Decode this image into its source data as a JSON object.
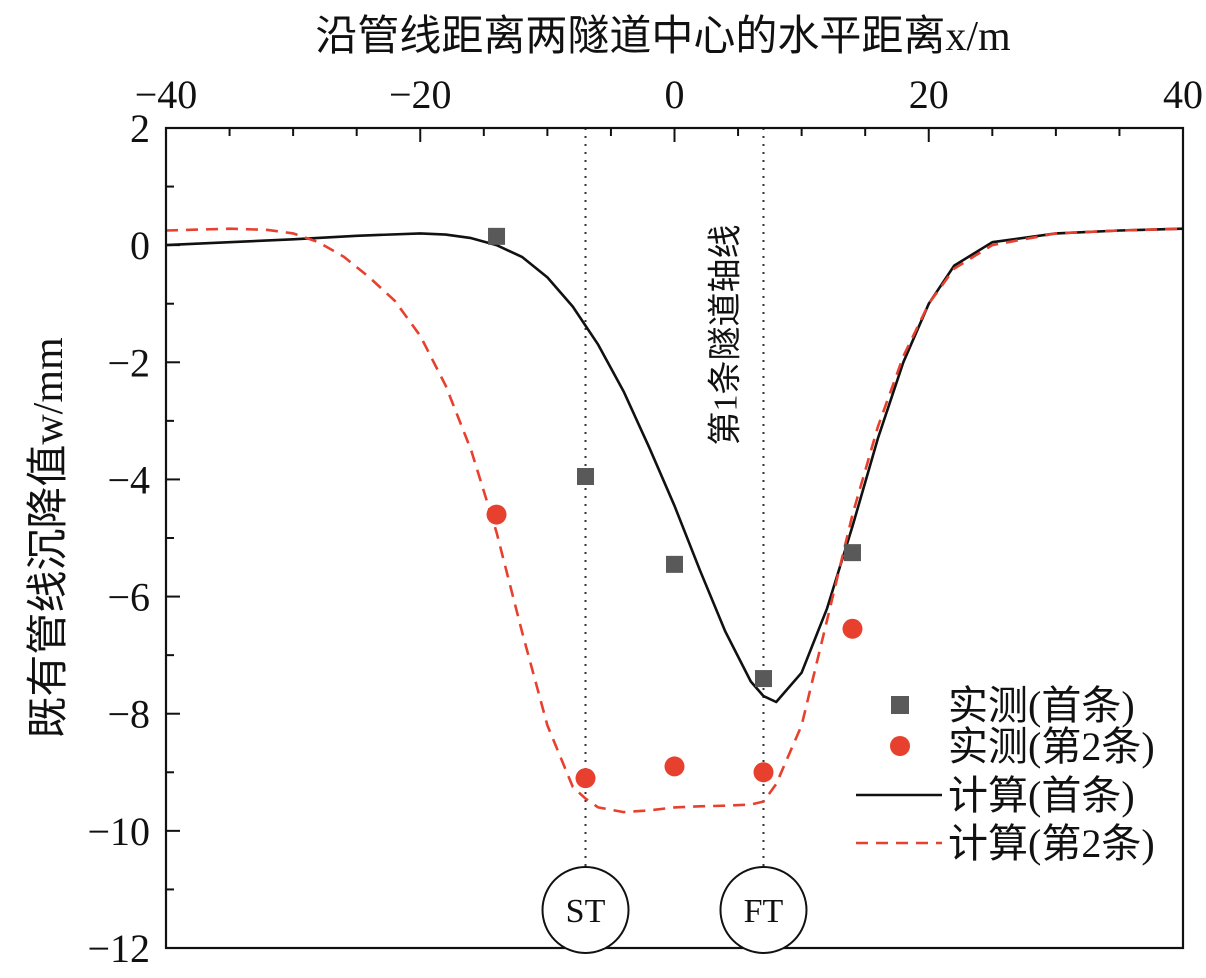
{
  "chart_data": {
    "type": "line",
    "xlabel": "沿管线距离两隧道中心的水平距离x/m",
    "ylabel": "既有管线沉降值w/mm",
    "xlim": [
      -40,
      40
    ],
    "ylim": [
      -12,
      2
    ],
    "x_ticks": [
      -40,
      -20,
      0,
      20,
      40
    ],
    "x_tick_labels": [
      "−40",
      "−20",
      "0",
      "20",
      "40"
    ],
    "y_ticks": [
      2,
      0,
      -2,
      -4,
      -6,
      -8,
      -10,
      -12
    ],
    "y_tick_labels": [
      "2",
      "0",
      "−2",
      "−4",
      "−6",
      "−8",
      "−10",
      "−12"
    ],
    "x_axis_position": "top",
    "grid": false,
    "legend_position": "bottom-right",
    "annotations": {
      "axis_line_label": "第1条隧道轴线",
      "st_label": "ST",
      "ft_label": "FT",
      "st_x": -7,
      "ft_x": 7
    },
    "series": [
      {
        "name": "实测(首条)",
        "kind": "scatter",
        "marker": "square",
        "color": "#595959",
        "x": [
          -14,
          -7,
          0,
          7,
          14
        ],
        "y": [
          0.15,
          -3.95,
          -5.45,
          -7.4,
          -5.25
        ]
      },
      {
        "name": "实测(第2条)",
        "kind": "scatter",
        "marker": "circle",
        "color": "#e8402e",
        "x": [
          -14,
          -7,
          0,
          7,
          14
        ],
        "y": [
          -4.6,
          -9.1,
          -8.9,
          -9.0,
          -6.55
        ]
      },
      {
        "name": "计算(首条)",
        "kind": "line",
        "style": "solid",
        "color": "#111111",
        "x": [
          -40,
          -35,
          -30,
          -25,
          -20,
          -18,
          -16,
          -14,
          -12,
          -10,
          -8,
          -6,
          -4,
          -2,
          0,
          2,
          4,
          6,
          7,
          8,
          10,
          12,
          14,
          16,
          18,
          20,
          22,
          25,
          30,
          35,
          40
        ],
        "y": [
          0.0,
          0.05,
          0.1,
          0.16,
          0.2,
          0.18,
          0.12,
          0.0,
          -0.2,
          -0.55,
          -1.05,
          -1.7,
          -2.5,
          -3.45,
          -4.45,
          -5.55,
          -6.6,
          -7.45,
          -7.7,
          -7.8,
          -7.3,
          -6.2,
          -4.8,
          -3.3,
          -2.0,
          -1.0,
          -0.35,
          0.05,
          0.2,
          0.25,
          0.28
        ]
      },
      {
        "name": "计算(第2条)",
        "kind": "line",
        "style": "dashed",
        "color": "#e8402e",
        "x": [
          -40,
          -35,
          -32,
          -30,
          -28,
          -26,
          -24,
          -22,
          -20,
          -18,
          -16,
          -14,
          -12,
          -10,
          -8,
          -7,
          -6,
          -4,
          -2,
          0,
          2,
          4,
          6,
          7,
          8,
          10,
          12,
          14,
          16,
          18,
          20,
          22,
          25,
          30,
          35,
          40
        ],
        "y": [
          0.25,
          0.28,
          0.26,
          0.2,
          0.05,
          -0.2,
          -0.55,
          -0.95,
          -1.55,
          -2.4,
          -3.5,
          -4.9,
          -6.6,
          -8.2,
          -9.25,
          -9.45,
          -9.6,
          -9.68,
          -9.65,
          -9.6,
          -9.58,
          -9.57,
          -9.55,
          -9.5,
          -9.2,
          -8.2,
          -6.4,
          -4.6,
          -3.1,
          -1.9,
          -1.0,
          -0.4,
          0.0,
          0.2,
          0.25,
          0.28
        ]
      }
    ]
  }
}
